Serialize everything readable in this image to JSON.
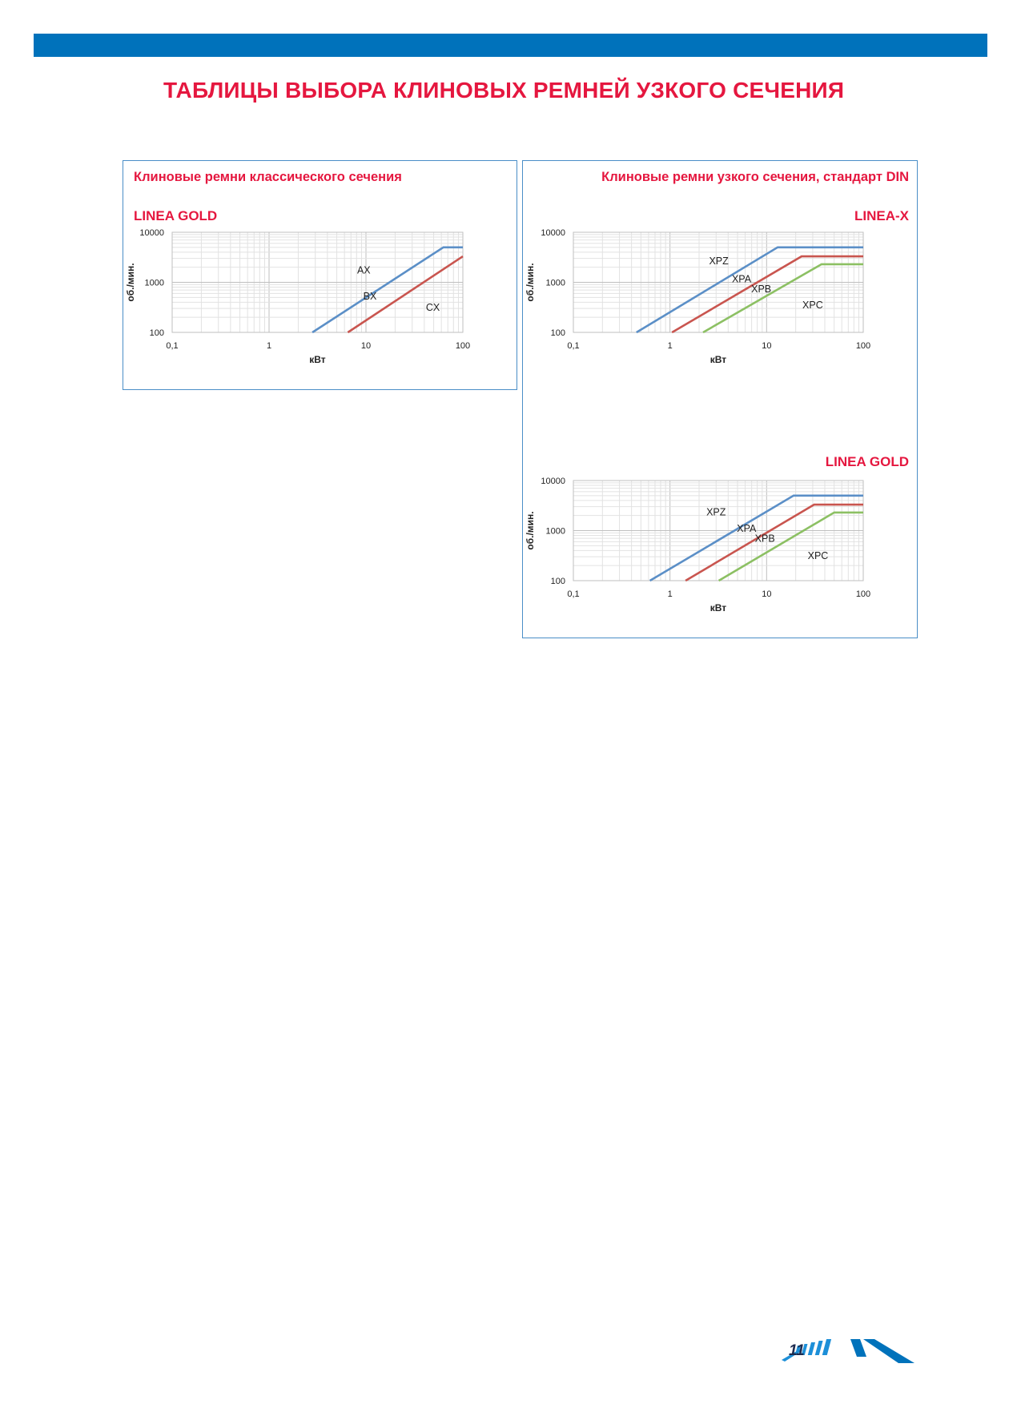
{
  "page": {
    "title": "ТАБЛИЦЫ ВЫБОРА КЛИНОВЫХ РЕМНЕЙ УЗКОГО СЕЧЕНИЯ",
    "page_number": "11",
    "accent_blue": "#0072bb",
    "accent_red": "#e5173f"
  },
  "panels": {
    "left_heading": "Клиновые ремни классического сечения",
    "right_heading": "Клиновые ремни узкого сечения, стандарт DIN"
  },
  "chart_data": [
    {
      "type": "line",
      "id": "chart-classic-gold",
      "title": "LINEA GOLD",
      "xlabel": "кВт",
      "ylabel": "об./мин.",
      "xscale": "log",
      "yscale": "log",
      "xlim": [
        0.1,
        100
      ],
      "ylim": [
        100,
        10000
      ],
      "xticks": [
        "0,1",
        "1",
        "10",
        "100"
      ],
      "yticks": [
        "100",
        "1000",
        "10000"
      ],
      "grid": true,
      "legend": "none",
      "series": [
        {
          "name": "AX",
          "color": "#5b8fc7",
          "points": [
            [
              2.8,
              100
            ],
            [
              63,
              5000
            ],
            [
              100,
              5000
            ]
          ],
          "label_at": [
            9.5,
            1500
          ]
        },
        {
          "name": "BX",
          "color": "#c9554f",
          "points": [
            [
              6.5,
              100
            ],
            [
              100,
              3300
            ]
          ],
          "label_at": [
            11,
            450
          ]
        },
        {
          "name": "CX",
          "color": "#5b8fc7",
          "points": [],
          "label_at": [
            49,
            270
          ]
        }
      ]
    },
    {
      "type": "line",
      "id": "chart-narrow-x",
      "title": "LINEA-X",
      "xlabel": "кВт",
      "ylabel": "об./мин.",
      "xscale": "log",
      "yscale": "log",
      "xlim": [
        0.1,
        100
      ],
      "ylim": [
        100,
        10000
      ],
      "xticks": [
        "0,1",
        "1",
        "10",
        "100"
      ],
      "yticks": [
        "100",
        "1000",
        "10000"
      ],
      "grid": true,
      "legend": "none",
      "series": [
        {
          "name": "XPZ",
          "color": "#5b8fc7",
          "points": [
            [
              0.45,
              100
            ],
            [
              13,
              5000
            ],
            [
              100,
              5000
            ]
          ],
          "label_at": [
            3.2,
            2300
          ]
        },
        {
          "name": "XPA",
          "color": "#c9554f",
          "points": [
            [
              1.05,
              100
            ],
            [
              23,
              3300
            ],
            [
              100,
              3300
            ]
          ],
          "label_at": [
            5.5,
            1000
          ]
        },
        {
          "name": "XPB",
          "color": "#8cc063",
          "points": [
            [
              2.2,
              100
            ],
            [
              37,
              2300
            ],
            [
              100,
              2300
            ]
          ],
          "label_at": [
            8.8,
            630
          ]
        },
        {
          "name": "XPC",
          "color": "#8cc063",
          "points": [],
          "label_at": [
            30,
            300
          ]
        }
      ]
    },
    {
      "type": "line",
      "id": "chart-narrow-gold",
      "title": "LINEA GOLD",
      "xlabel": "кВт",
      "ylabel": "об./мин.",
      "xscale": "log",
      "yscale": "log",
      "xlim": [
        0.1,
        100
      ],
      "ylim": [
        100,
        10000
      ],
      "xticks": [
        "0,1",
        "1",
        "10",
        "100"
      ],
      "yticks": [
        "100",
        "1000",
        "10000"
      ],
      "grid": true,
      "legend": "none",
      "series": [
        {
          "name": "XPZ",
          "color": "#5b8fc7",
          "points": [
            [
              0.62,
              100
            ],
            [
              19,
              5000
            ],
            [
              100,
              5000
            ]
          ],
          "label_at": [
            3,
            2000
          ]
        },
        {
          "name": "XPA",
          "color": "#c9554f",
          "points": [
            [
              1.45,
              100
            ],
            [
              31,
              3300
            ],
            [
              100,
              3300
            ]
          ],
          "label_at": [
            6.2,
            950
          ]
        },
        {
          "name": "XPB",
          "color": "#8cc063",
          "points": [
            [
              3.2,
              100
            ],
            [
              50,
              2300
            ],
            [
              100,
              2300
            ]
          ],
          "label_at": [
            9.6,
            600
          ]
        },
        {
          "name": "XPC",
          "color": "#8cc063",
          "points": [],
          "label_at": [
            34,
            270
          ]
        }
      ]
    }
  ]
}
